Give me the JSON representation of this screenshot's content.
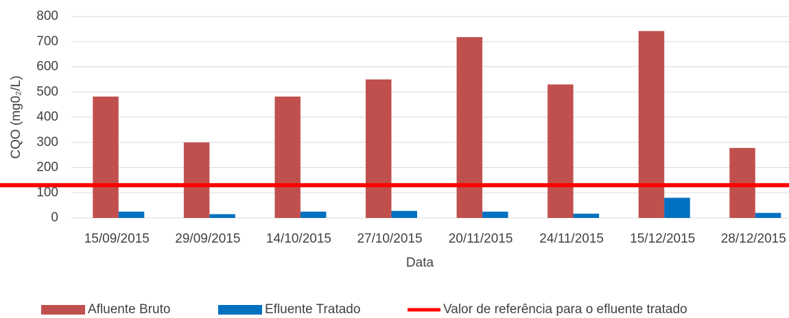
{
  "chart_data": {
    "type": "bar",
    "ylabel": "CQO (mg0₂/L)",
    "xlabel": "Data",
    "categories": [
      "15/09/2015",
      "29/09/2015",
      "14/10/2015",
      "27/10/2015",
      "20/11/2015",
      "24/11/2015",
      "15/12/2015",
      "28/12/2015"
    ],
    "series": [
      {
        "name": "Afluente Bruto",
        "color": "#c0504d",
        "values": [
          482,
          300,
          482,
          550,
          718,
          530,
          742,
          278
        ]
      },
      {
        "name": "Efluente Tratado",
        "color": "#0070c0",
        "values": [
          25,
          15,
          25,
          28,
          25,
          17,
          80,
          20
        ]
      }
    ],
    "reference_line": {
      "name": "Valor de referência para o efluente tratado",
      "color": "#ff0000",
      "value": 130
    },
    "ylim": [
      0,
      800
    ],
    "yticks": [
      0,
      100,
      200,
      300,
      400,
      500,
      600,
      700,
      800
    ],
    "grid": true,
    "legend": "bottom"
  }
}
